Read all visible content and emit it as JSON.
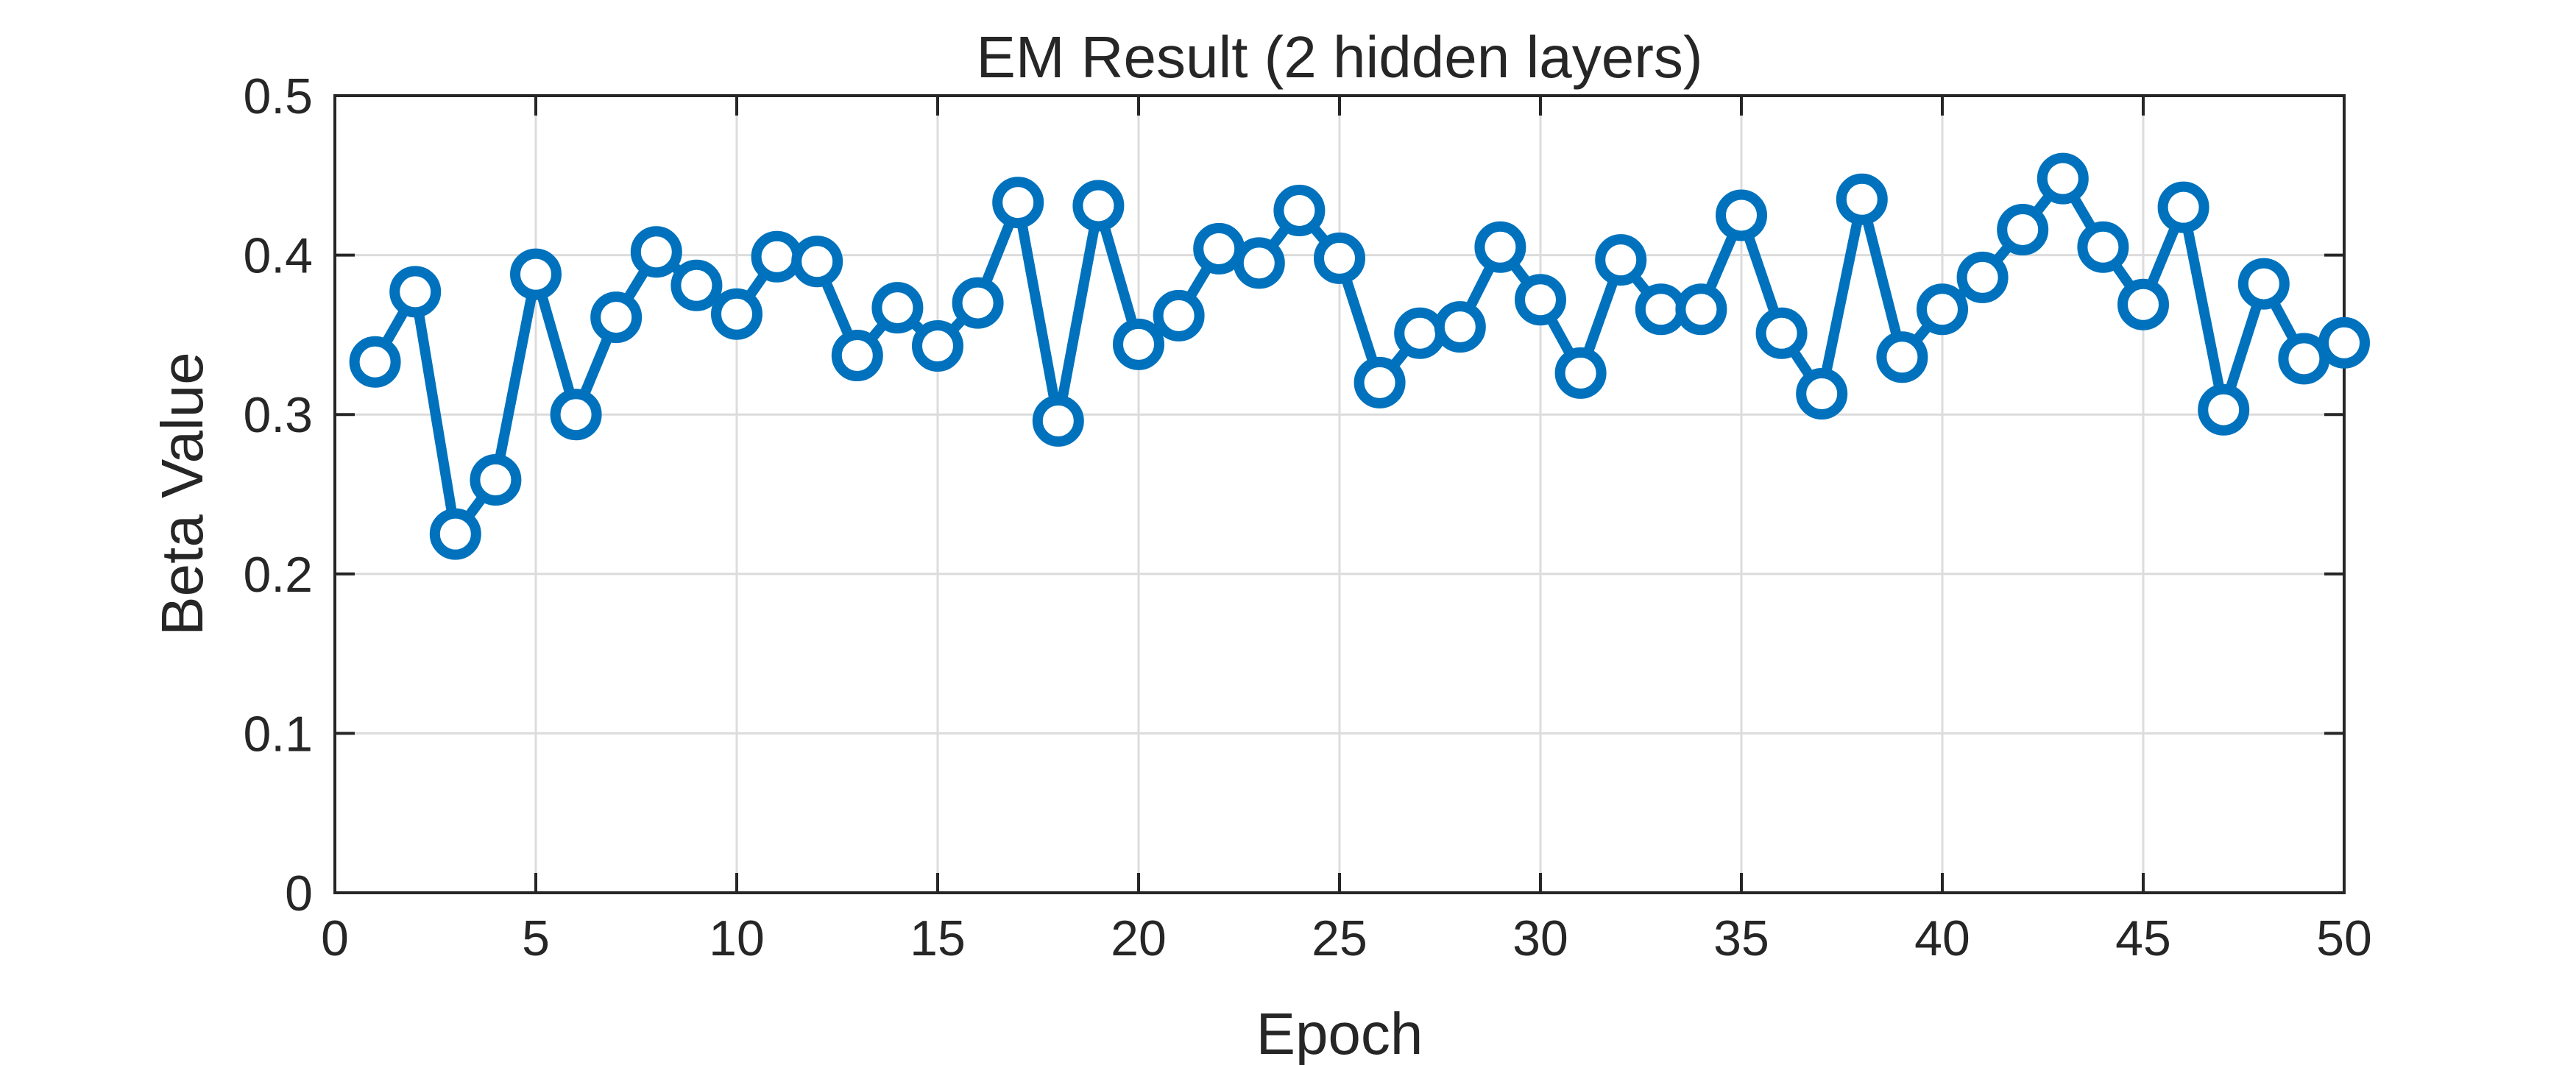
{
  "chart_data": {
    "type": "line",
    "title": "EM Result (2 hidden layers)",
    "xlabel": "Epoch",
    "ylabel": "Beta Value",
    "xlim": [
      0,
      50
    ],
    "ylim": [
      0,
      0.5
    ],
    "xticks": [
      0,
      5,
      10,
      15,
      20,
      25,
      30,
      35,
      40,
      45,
      50
    ],
    "yticks": [
      0,
      0.1,
      0.2,
      0.3,
      0.4,
      0.5
    ],
    "xtick_labels": [
      "0",
      "5",
      "10",
      "15",
      "20",
      "25",
      "30",
      "35",
      "40",
      "45",
      "50"
    ],
    "ytick_labels": [
      "0",
      "0.1",
      "0.2",
      "0.3",
      "0.4",
      "0.5"
    ],
    "grid": true,
    "marker": "circle",
    "colors": {
      "series": "#0072BD",
      "axes": "#262626",
      "grid": "#dcdcdc"
    },
    "series": [
      {
        "x": [
          1,
          2,
          3,
          4,
          5,
          6,
          7,
          8,
          9,
          10,
          11,
          12,
          13,
          14,
          15,
          16,
          17,
          18,
          19,
          20,
          21,
          22,
          23,
          24,
          25,
          26,
          27,
          28,
          29,
          30,
          31,
          32,
          33,
          34,
          35,
          36,
          37,
          38,
          39,
          40,
          41,
          42,
          43,
          44,
          45,
          46,
          47,
          48,
          49,
          50
        ],
        "y": [
          0.333,
          0.377,
          0.225,
          0.259,
          0.388,
          0.3,
          0.361,
          0.402,
          0.381,
          0.363,
          0.399,
          0.396,
          0.337,
          0.367,
          0.343,
          0.37,
          0.433,
          0.296,
          0.431,
          0.344,
          0.362,
          0.404,
          0.395,
          0.428,
          0.398,
          0.32,
          0.351,
          0.355,
          0.405,
          0.372,
          0.326,
          0.397,
          0.366,
          0.366,
          0.425,
          0.351,
          0.313,
          0.435,
          0.336,
          0.366,
          0.386,
          0.416,
          0.448,
          0.405,
          0.369,
          0.43,
          0.303,
          0.382,
          0.335,
          0.345
        ]
      }
    ]
  }
}
